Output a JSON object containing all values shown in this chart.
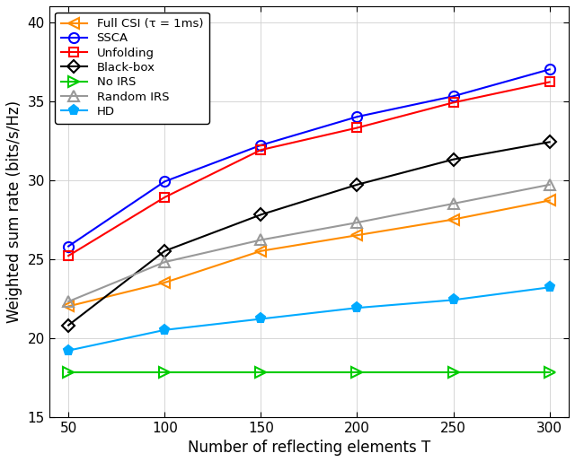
{
  "x": [
    50,
    100,
    150,
    200,
    250,
    300
  ],
  "series": [
    {
      "name": "Full CSI",
      "values": [
        22.0,
        23.5,
        25.5,
        26.5,
        27.5,
        28.7
      ],
      "color": "#FF8C00",
      "marker": "<",
      "filled": false,
      "markersize": 8,
      "label": "Full CSI (τ = 1ms)"
    },
    {
      "name": "SSCA",
      "values": [
        25.8,
        29.9,
        32.2,
        34.0,
        35.3,
        37.0
      ],
      "color": "#0000FF",
      "marker": "o",
      "filled": false,
      "markersize": 8,
      "label": "SSCA"
    },
    {
      "name": "Unfolding",
      "values": [
        25.2,
        28.9,
        31.9,
        33.3,
        34.9,
        36.2
      ],
      "color": "#FF0000",
      "marker": "s",
      "filled": false,
      "markersize": 7,
      "label": "Unfolding"
    },
    {
      "name": "Black-box",
      "values": [
        20.8,
        25.5,
        27.8,
        29.7,
        31.3,
        32.4
      ],
      "color": "#000000",
      "marker": "D",
      "filled": false,
      "markersize": 7,
      "label": "Black-box"
    },
    {
      "name": "No IRS",
      "values": [
        17.8,
        17.8,
        17.8,
        17.8,
        17.8,
        17.8
      ],
      "color": "#00CC00",
      "marker": ">",
      "filled": false,
      "markersize": 8,
      "label": "No IRS"
    },
    {
      "name": "Random IRS",
      "values": [
        22.3,
        24.8,
        26.2,
        27.3,
        28.5,
        29.7
      ],
      "color": "#999999",
      "marker": "^",
      "filled": false,
      "markersize": 8,
      "label": "Random IRS"
    },
    {
      "name": "HD",
      "values": [
        19.2,
        20.5,
        21.2,
        21.9,
        22.4,
        23.2
      ],
      "color": "#00AAFF",
      "marker": "p",
      "filled": true,
      "markersize": 8,
      "label": "HD"
    }
  ],
  "xlabel": "Number of reflecting elements T",
  "ylabel": "Weighted sum rate (bits/s/Hz)",
  "ylim": [
    15,
    41
  ],
  "xlim": [
    40,
    310
  ],
  "yticks": [
    15,
    20,
    25,
    30,
    35,
    40
  ],
  "xticks": [
    50,
    100,
    150,
    200,
    250,
    300
  ],
  "grid": true,
  "legend_loc": "upper left",
  "figsize": [
    6.4,
    5.15
  ],
  "dpi": 100,
  "bg_color": "#FFFFFF",
  "linewidth": 1.5
}
